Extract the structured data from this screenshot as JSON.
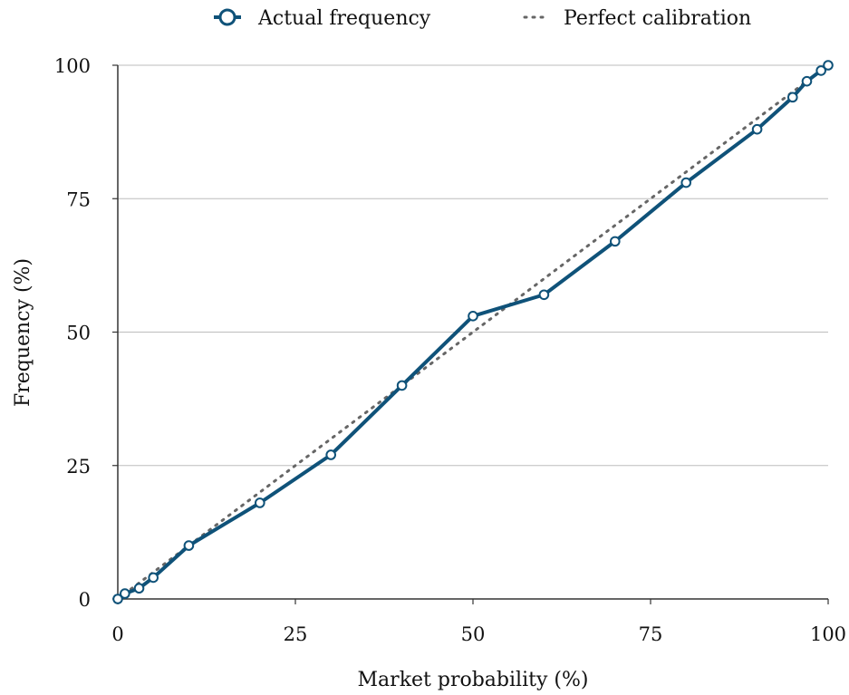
{
  "chart_data": {
    "type": "line",
    "title": "",
    "xlabel": "Market probability (%)",
    "ylabel": "Frequency (%)",
    "xlim": [
      0,
      100
    ],
    "ylim": [
      0,
      100
    ],
    "x_ticks": [
      "0",
      "25",
      "50",
      "75",
      "100"
    ],
    "y_ticks": [
      "0",
      "25",
      "50",
      "75",
      "100"
    ],
    "grid": "horizontal",
    "legend_position": "top",
    "series": [
      {
        "name": "Actual frequency",
        "style": "solid-line-with-circle-markers",
        "color": "#0f5279",
        "x": [
          0,
          1,
          3,
          5,
          10,
          20,
          30,
          40,
          50,
          60,
          70,
          80,
          90,
          95,
          97,
          99,
          100
        ],
        "y": [
          0,
          1,
          2,
          4,
          10,
          18,
          27,
          40,
          53,
          57,
          67,
          78,
          88,
          94,
          97,
          99,
          100
        ]
      },
      {
        "name": "Perfect calibration",
        "style": "dotted",
        "color": "#666666",
        "x": [
          0,
          100
        ],
        "y": [
          0,
          100
        ]
      }
    ]
  }
}
